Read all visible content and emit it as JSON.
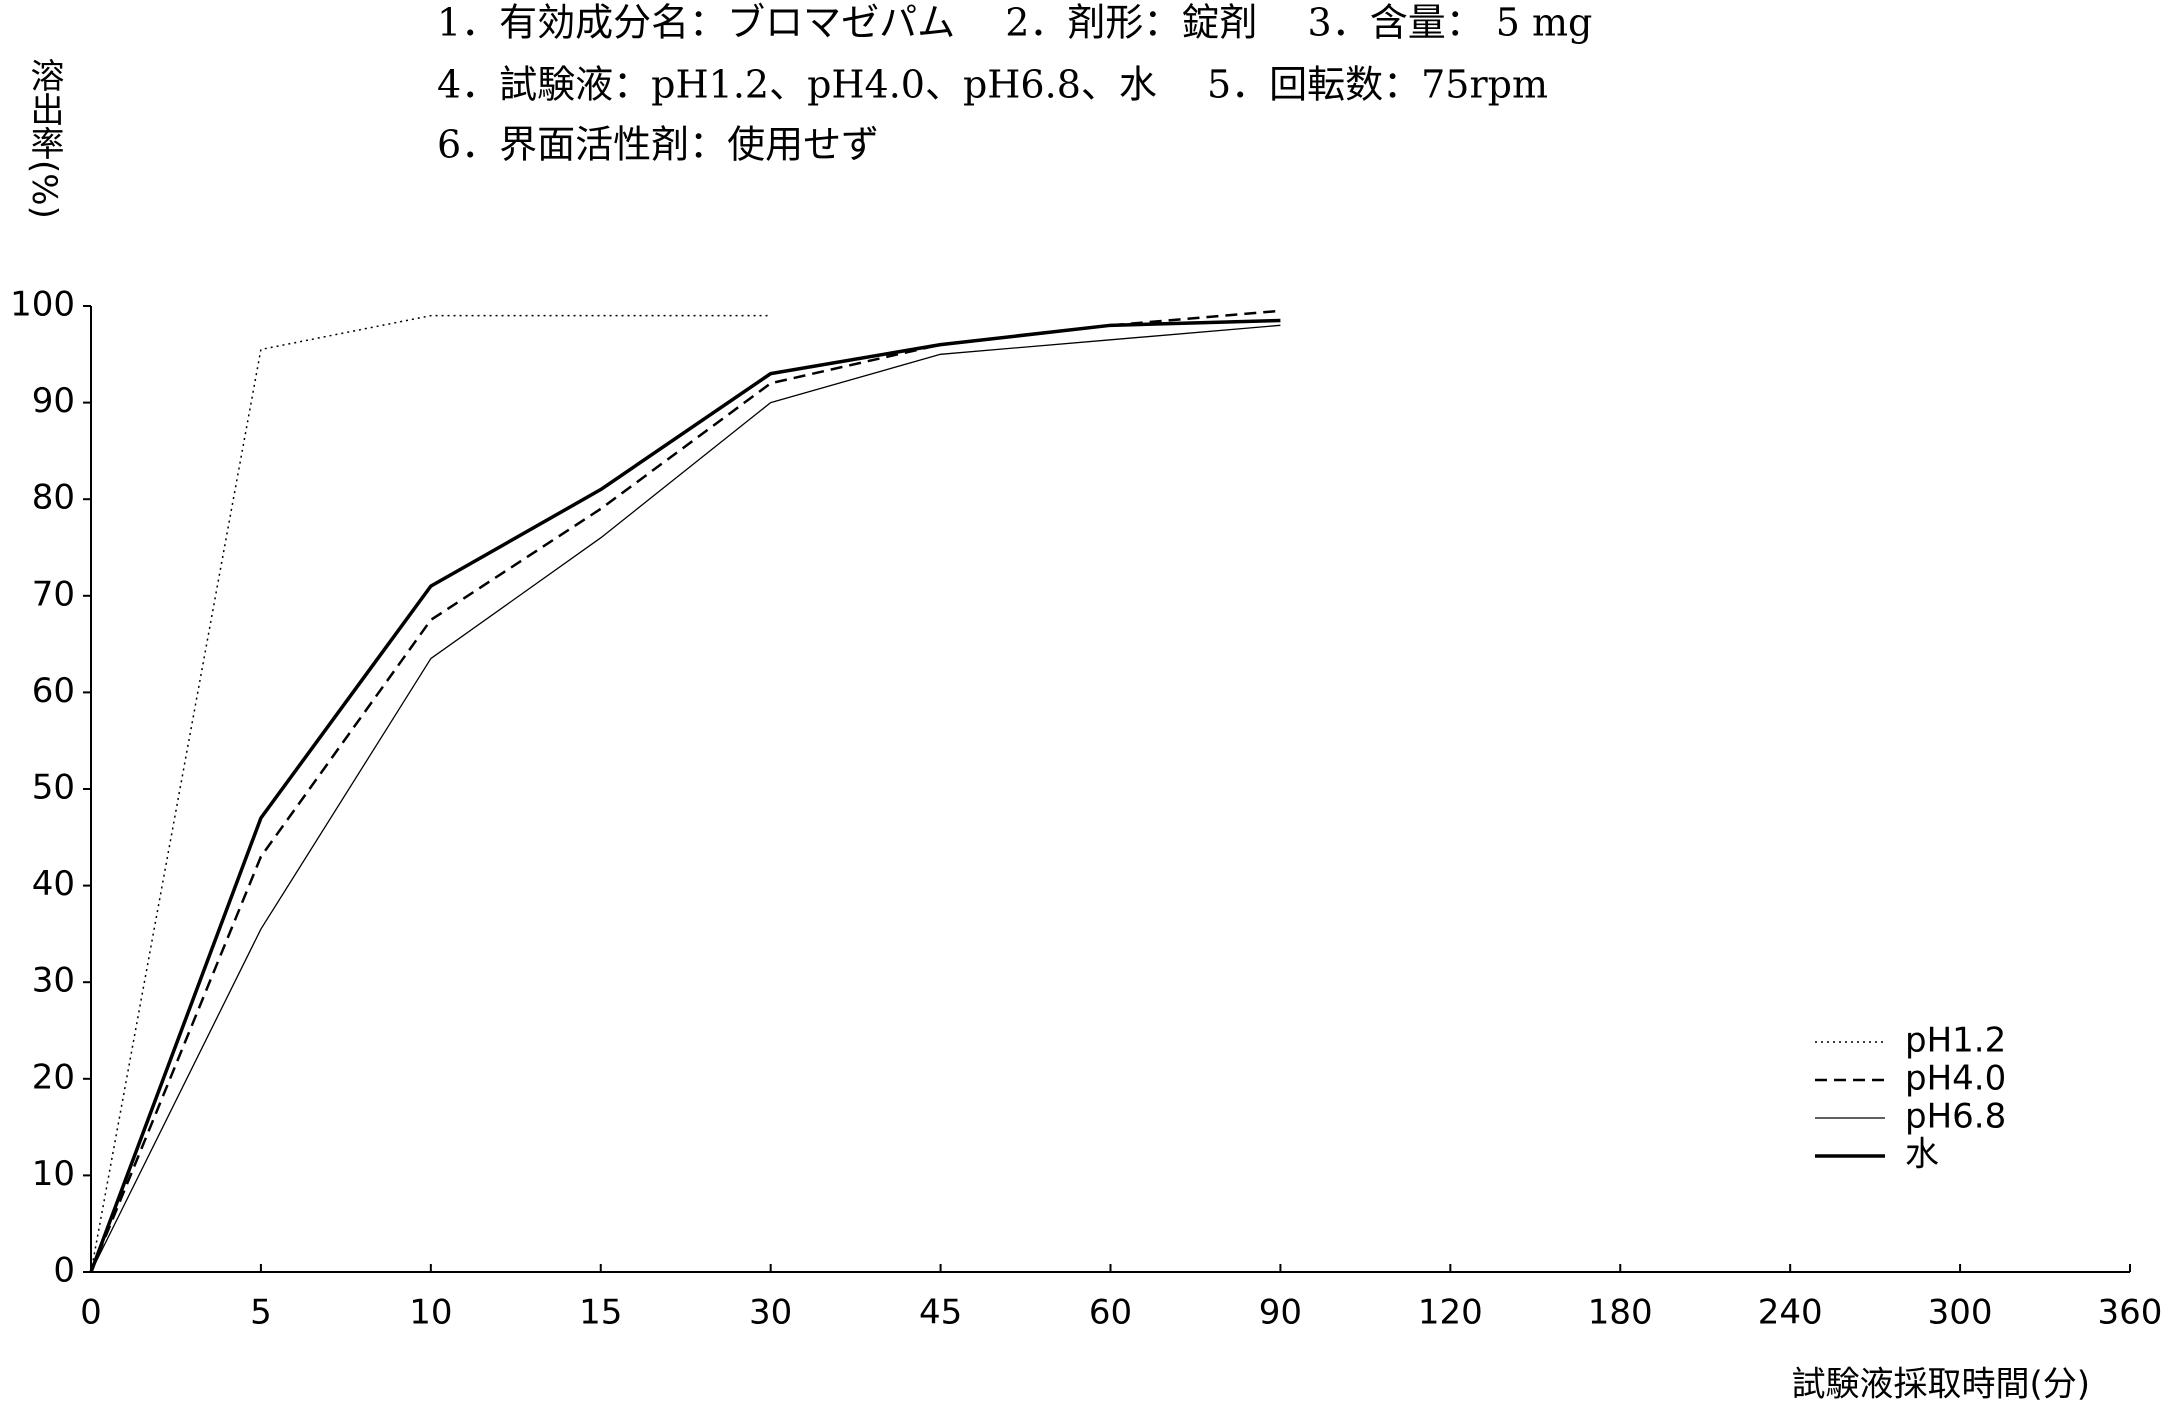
{
  "chart_data": {
    "type": "line",
    "header": [
      "1．有効成分名：ブロマゼパム　 2．剤形：錠剤　 3．含量： 5 mg",
      "4．試験液：pH1.2、pH4.0、pH6.8、水　 5．回転数：75rpm",
      "6．界面活性剤：使用せず"
    ],
    "y_label": "溶出率(%)",
    "x_label": "試験液採取時間(分)",
    "categories": [
      "0",
      "5",
      "10",
      "15",
      "30",
      "45",
      "60",
      "90",
      "120",
      "180",
      "240",
      "300",
      "360"
    ],
    "ylim": [
      0,
      100
    ],
    "yticks": [
      0,
      10,
      20,
      30,
      40,
      50,
      60,
      70,
      80,
      90,
      100
    ],
    "legend": "lower-right",
    "series": [
      {
        "name": "pH1.2",
        "color": "#000000",
        "line_style": "dotted",
        "line_width": 1.5,
        "values": [
          0,
          95.5,
          99,
          99,
          99,
          null,
          null,
          null,
          null,
          null,
          null,
          null,
          null
        ]
      },
      {
        "name": "pH4.0",
        "color": "#000000",
        "line_style": "dashed",
        "line_width": 2.5,
        "values": [
          0,
          43,
          67.5,
          79,
          92,
          96,
          98,
          99.5,
          null,
          null,
          null,
          null,
          null
        ]
      },
      {
        "name": "pH6.8",
        "color": "#000000",
        "line_style": "solid",
        "line_width": 1.3,
        "values": [
          0,
          35.5,
          63.5,
          76,
          90,
          95,
          96.5,
          98,
          null,
          null,
          null,
          null,
          null
        ]
      },
      {
        "name": "水",
        "color": "#000000",
        "line_style": "solid",
        "line_width": 3.5,
        "values": [
          0,
          47,
          71,
          81,
          93,
          96,
          98,
          98.5,
          null,
          null,
          null,
          null,
          null
        ]
      }
    ]
  }
}
